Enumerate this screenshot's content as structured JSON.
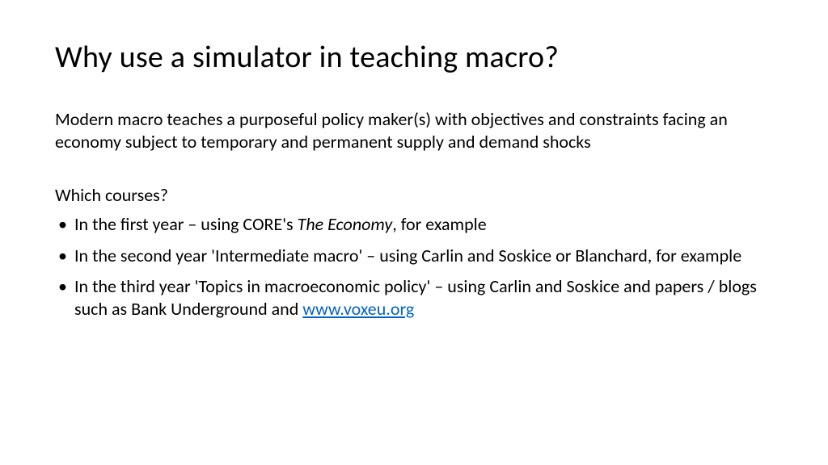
{
  "title": "Why use a simulator in teaching macro?",
  "intro": {
    "t1": "Modern macro teaches a ",
    "t2_red": "purposeful policy maker(s)",
    "t3": " with ",
    "t4_red": "objectives",
    "t5": " and ",
    "t6_red": "constraints",
    "t7": " facing an economy subject to temporary and permanent supply and demand shocks"
  },
  "subhead": "Which courses?",
  "bullets": [
    {
      "a": "In the first year – using CORE's ",
      "b_italic": "The Economy",
      "c": ", for example"
    },
    {
      "a": "In the second year 'Intermediate macro' – using Carlin and Soskice or Blanchard, for example",
      "b_italic": "",
      "c": ""
    },
    {
      "a": "In the third year 'Topics in macroeconomic policy' – using Carlin and Soskice and papers / blogs such as Bank Underground and ",
      "b_italic": "",
      "c": "",
      "link": "www.voxeu.org"
    }
  ],
  "colors": {
    "text": "#000000",
    "highlight": "#c00000",
    "link": "#0563c1",
    "background": "#ffffff"
  }
}
